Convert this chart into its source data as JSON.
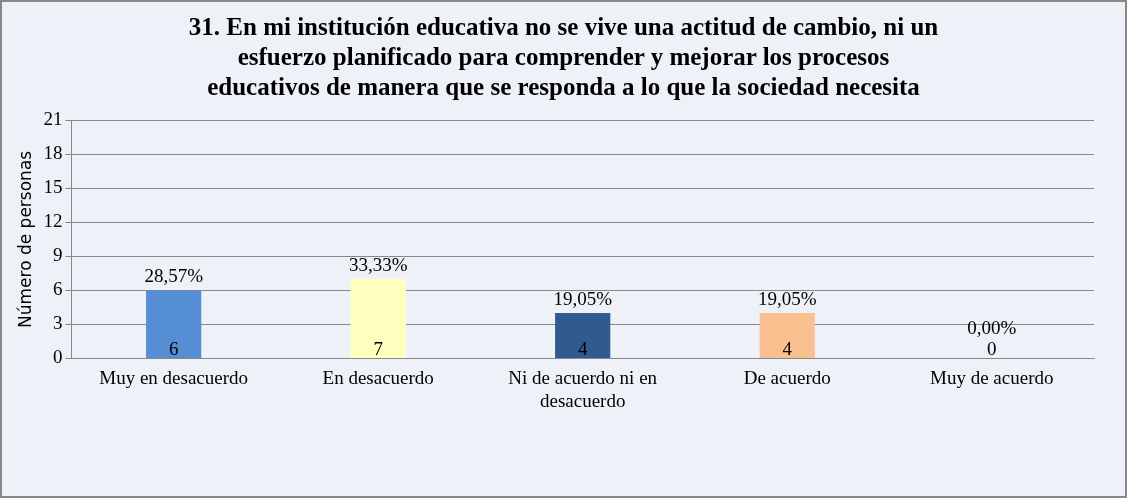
{
  "chart_data": {
    "type": "bar",
    "title": "31. En mi institución educativa no se vive una actitud de cambio, ni un esfuerzo planificado para comprender y mejorar los procesos educativos de manera que se responda a lo que la sociedad necesita",
    "ylabel": "Número de personas",
    "categories": [
      "Muy en desacuerdo",
      "En desacuerdo",
      "Ni de acuerdo ni en desacuerdo",
      "De acuerdo",
      "Muy de acuerdo"
    ],
    "values": [
      6,
      7,
      4,
      4,
      0
    ],
    "colors": [
      "#558ed5",
      "#ffffc0",
      "#2f5b8f",
      "#fac090",
      "#c0504d"
    ],
    "ylim": [
      0,
      21
    ],
    "yticks": [
      0,
      3,
      6,
      9,
      12,
      15,
      18,
      21
    ],
    "grid": "y",
    "legend": false,
    "data_labels": true,
    "annotations": [
      {
        "text": "28,57%",
        "x": "Muy en desacuerdo",
        "y": 6
      },
      {
        "text": "33,33%",
        "x": "En desacuerdo",
        "y": 7
      },
      {
        "text": "19,05%",
        "x": "Ni de acuerdo ni en desacuerdo",
        "y": 4
      },
      {
        "text": "19,05%",
        "x": "De acuerdo",
        "y": 4
      },
      {
        "text": "0,00%",
        "x": "Muy de acuerdo",
        "y": 0
      }
    ]
  }
}
